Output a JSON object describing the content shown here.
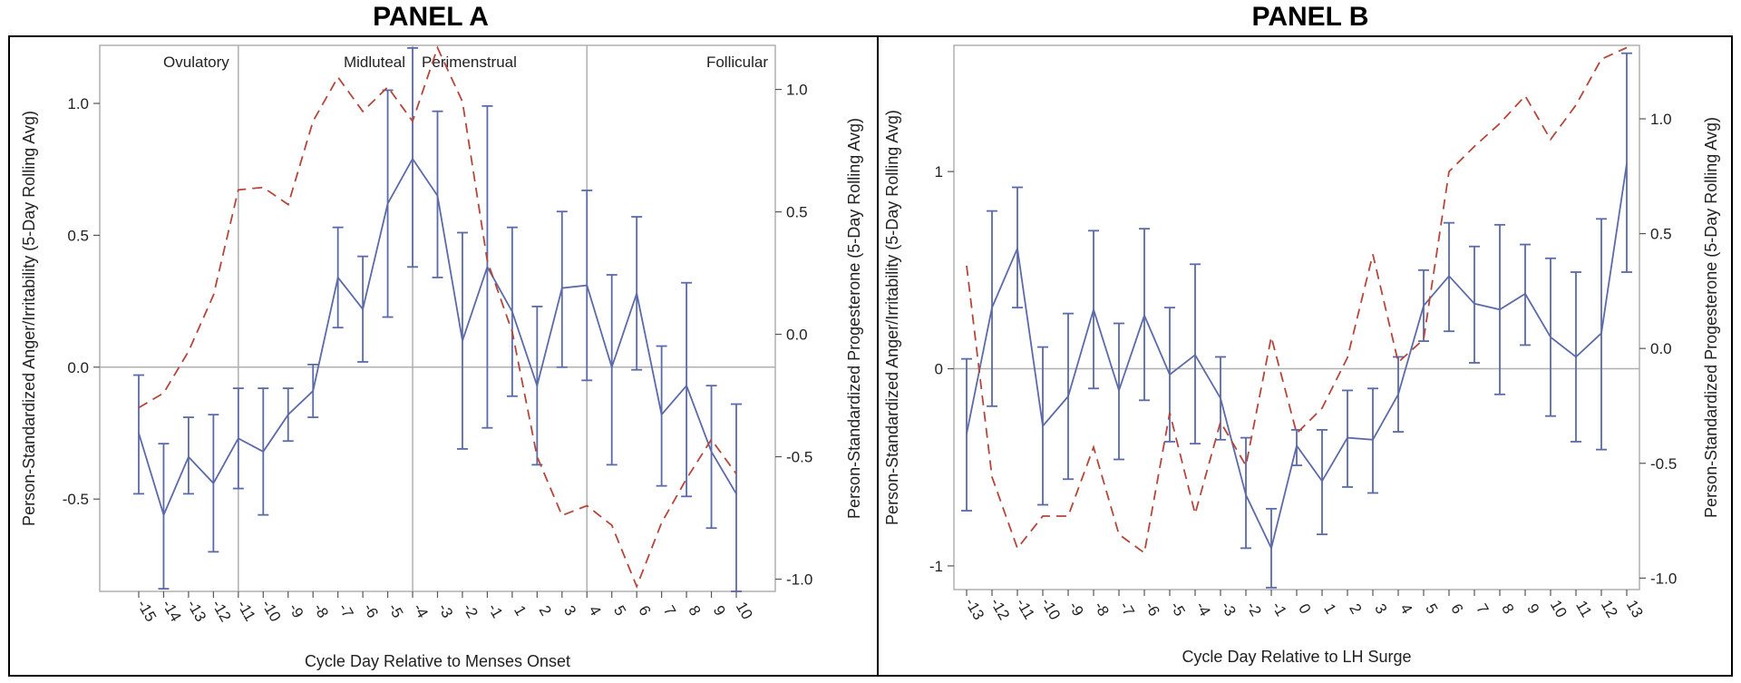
{
  "chart_data": [
    {
      "type": "line",
      "title": "PANEL A",
      "xlabel": "Cycle Day Relative to Menses Onset",
      "ylabel": "Person-Standardized Anger/Irritability (5-Day Rolling Avg)",
      "y2label": "Person-Standardized Progesterone (5-Day Rolling Avg)",
      "x": [
        -15,
        -14,
        -13,
        -12,
        -11,
        -10,
        -9,
        -8,
        -7,
        -6,
        -5,
        -4,
        -3,
        -2,
        -1,
        1,
        2,
        3,
        4,
        5,
        6,
        7,
        8,
        9,
        10
      ],
      "x_tick_labels": [
        "-15",
        "-14",
        "-13",
        "-12",
        "-11",
        "-10",
        "-9",
        "-8",
        "-7",
        "-6",
        "-5",
        "-4",
        "-3",
        "-2",
        "-1",
        "1",
        "2",
        "3",
        "4",
        "5",
        "6",
        "7",
        "8",
        "9",
        "10"
      ],
      "ylim": [
        -0.85,
        1.22
      ],
      "y_ticks": [
        -0.5,
        0.0,
        0.5,
        1.0
      ],
      "y_tick_labels": [
        "-0.5",
        "0.0",
        "0.5",
        "1.0"
      ],
      "y2lim": [
        -1.05,
        1.18
      ],
      "y2_ticks": [
        -1.0,
        -0.5,
        0.0,
        0.5,
        1.0
      ],
      "y2_tick_labels": [
        "-1.0",
        "-0.5",
        "0.0",
        "0.5",
        "1.0"
      ],
      "phases": [
        {
          "label": "Ovulatory",
          "start": -15,
          "end": -11
        },
        {
          "label": "Midluteal",
          "start": -11,
          "end": -4
        },
        {
          "label": "Perimenstrual",
          "start": -4,
          "end": 4
        },
        {
          "label": "Follicular",
          "start": 4,
          "end": 10
        }
      ],
      "series": [
        {
          "name": "Anger/Irritability",
          "axis": "left",
          "values": [
            -0.25,
            -0.56,
            -0.34,
            -0.44,
            -0.27,
            -0.32,
            -0.18,
            -0.09,
            0.34,
            0.22,
            0.62,
            0.79,
            0.65,
            0.1,
            0.38,
            0.21,
            -0.07,
            0.3,
            0.31,
            0.0,
            0.28,
            -0.18,
            -0.07,
            -0.32,
            -0.48
          ],
          "lower": [
            -0.48,
            -0.84,
            -0.48,
            -0.7,
            -0.46,
            -0.56,
            -0.28,
            -0.19,
            0.15,
            0.02,
            0.19,
            0.38,
            0.34,
            -0.31,
            -0.23,
            -0.11,
            -0.37,
            0.0,
            -0.05,
            -0.37,
            -0.01,
            -0.45,
            -0.49,
            -0.61,
            -0.85
          ],
          "upper": [
            -0.03,
            -0.29,
            -0.19,
            -0.18,
            -0.08,
            -0.08,
            -0.08,
            0.01,
            0.53,
            0.42,
            1.05,
            1.21,
            0.97,
            0.51,
            0.99,
            0.53,
            0.23,
            0.59,
            0.67,
            0.35,
            0.57,
            0.08,
            0.32,
            -0.07,
            -0.14
          ]
        },
        {
          "name": "Progesterone",
          "axis": "right",
          "values": [
            -0.3,
            -0.24,
            -0.07,
            0.16,
            0.59,
            0.6,
            0.53,
            0.87,
            1.05,
            0.91,
            1.01,
            0.87,
            1.17,
            0.95,
            0.3,
            0.01,
            -0.5,
            -0.74,
            -0.7,
            -0.78,
            -1.03,
            -0.77,
            -0.59,
            -0.43,
            -0.57
          ]
        }
      ]
    },
    {
      "type": "line",
      "title": "PANEL B",
      "xlabel": "Cycle Day Relative to LH Surge",
      "ylabel": "Person-Standardized Anger/Irritability (5-Day Rolling Avg)",
      "y2label": "Person-Standardized Progesterone (5-Day Rolling Avg)",
      "x": [
        -13,
        -12,
        -11,
        -10,
        -9,
        -8,
        -7,
        -6,
        -5,
        -4,
        -3,
        -2,
        -1,
        0,
        1,
        2,
        3,
        4,
        5,
        6,
        7,
        8,
        9,
        10,
        11,
        12,
        13
      ],
      "x_tick_labels": [
        "-13",
        "-12",
        "-11",
        "-10",
        "-9",
        "-8",
        "-7",
        "-6",
        "-5",
        "-4",
        "-3",
        "-2",
        "-1",
        "0",
        "1",
        "2",
        "3",
        "4",
        "5",
        "6",
        "7",
        "8",
        "9",
        "10",
        "11",
        "12",
        "13"
      ],
      "ylim": [
        -1.12,
        1.64
      ],
      "y_ticks": [
        -1,
        0,
        1
      ],
      "y_tick_labels": [
        "-1",
        "0",
        "1"
      ],
      "y2lim": [
        -1.05,
        1.32
      ],
      "y2_ticks": [
        -1.0,
        -0.5,
        0.0,
        0.5,
        1.0
      ],
      "y2_tick_labels": [
        "-1.0",
        "-0.5",
        "0.0",
        "0.5",
        "1.0"
      ],
      "series": [
        {
          "name": "Anger/Irritability",
          "axis": "left",
          "values": [
            -0.33,
            0.31,
            0.61,
            -0.29,
            -0.14,
            0.3,
            -0.11,
            0.27,
            -0.03,
            0.07,
            -0.15,
            -0.64,
            -0.91,
            -0.39,
            -0.57,
            -0.35,
            -0.36,
            -0.13,
            0.32,
            0.47,
            0.33,
            0.3,
            0.38,
            0.16,
            0.06,
            0.18,
            1.04
          ],
          "lower": [
            -0.72,
            -0.19,
            0.31,
            -0.69,
            -0.56,
            -0.1,
            -0.46,
            -0.16,
            -0.37,
            -0.38,
            -0.36,
            -0.91,
            -1.11,
            -0.49,
            -0.84,
            -0.6,
            -0.63,
            -0.32,
            0.14,
            0.19,
            0.03,
            -0.13,
            0.12,
            -0.24,
            -0.37,
            -0.41,
            0.49
          ],
          "upper": [
            0.05,
            0.8,
            0.92,
            0.11,
            0.28,
            0.7,
            0.23,
            0.71,
            0.31,
            0.53,
            0.06,
            -0.35,
            -0.71,
            -0.31,
            -0.31,
            -0.11,
            -0.1,
            0.06,
            0.5,
            0.74,
            0.62,
            0.73,
            0.63,
            0.56,
            0.49,
            0.76,
            1.6
          ]
        },
        {
          "name": "Progesterone",
          "axis": "right",
          "values": [
            0.36,
            -0.56,
            -0.87,
            -0.73,
            -0.73,
            -0.43,
            -0.81,
            -0.89,
            -0.28,
            -0.72,
            -0.32,
            -0.51,
            0.05,
            -0.37,
            -0.26,
            -0.04,
            0.41,
            -0.06,
            0.04,
            0.77,
            0.88,
            0.98,
            1.1,
            0.91,
            1.06,
            1.26,
            1.31
          ]
        }
      ]
    }
  ]
}
